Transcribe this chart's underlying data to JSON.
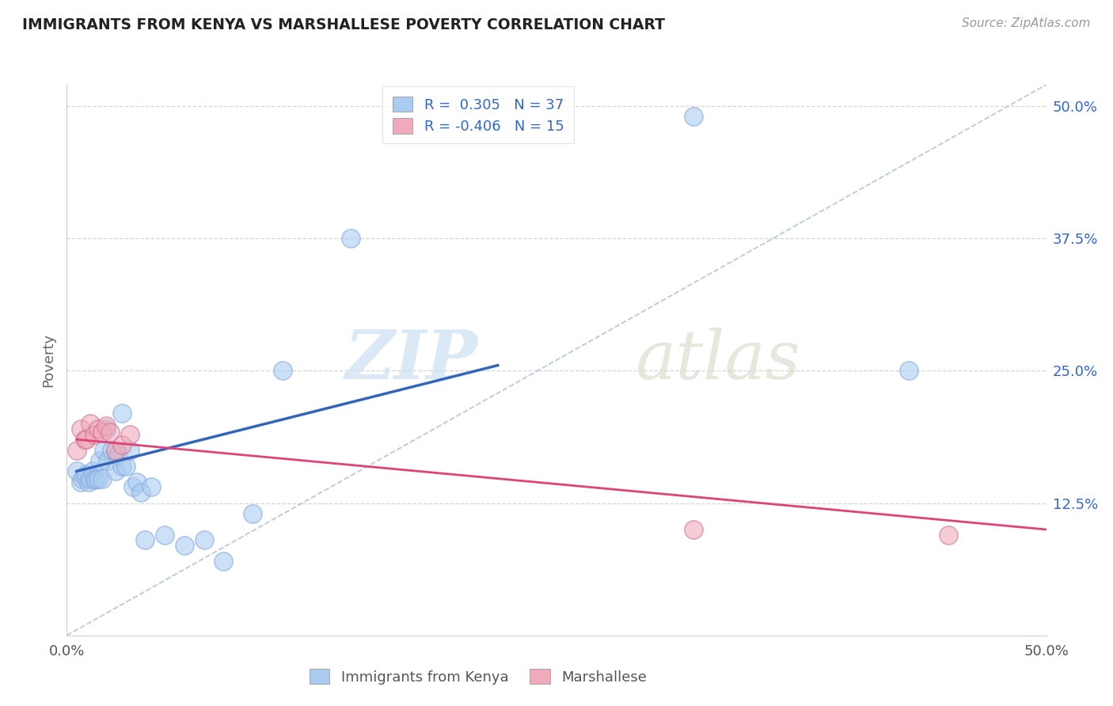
{
  "title": "IMMIGRANTS FROM KENYA VS MARSHALLESE POVERTY CORRELATION CHART",
  "source_text": "Source: ZipAtlas.com",
  "ylabel": "Poverty",
  "xlim": [
    0.0,
    0.5
  ],
  "ylim": [
    0.0,
    0.52
  ],
  "ytick_positions": [
    0.125,
    0.25,
    0.375,
    0.5
  ],
  "ytick_labels": [
    "12.5%",
    "25.0%",
    "37.5%",
    "50.0%"
  ],
  "kenya_R": 0.305,
  "kenya_N": 37,
  "marsh_R": -0.406,
  "marsh_N": 15,
  "kenya_color": "#aaccf0",
  "marsh_color": "#f0aabb",
  "kenya_line_color": "#3366bb",
  "marsh_line_color": "#dd4477",
  "trend_color": "#b0c4d8",
  "background_color": "#ffffff",
  "grid_color": "#cccccc",
  "legend_R_color": "#3366cc",
  "kenya_x": [
    0.02,
    0.028,
    0.005,
    0.007,
    0.008,
    0.009,
    0.01,
    0.011,
    0.012,
    0.013,
    0.014,
    0.015,
    0.016,
    0.017,
    0.018,
    0.019,
    0.021,
    0.023,
    0.025,
    0.026,
    0.028,
    0.03,
    0.032,
    0.034,
    0.036,
    0.038,
    0.04,
    0.043,
    0.05,
    0.06,
    0.07,
    0.08,
    0.095,
    0.11,
    0.145,
    0.32,
    0.43
  ],
  "kenya_y": [
    0.195,
    0.21,
    0.155,
    0.145,
    0.148,
    0.15,
    0.152,
    0.145,
    0.148,
    0.155,
    0.148,
    0.147,
    0.148,
    0.165,
    0.148,
    0.175,
    0.165,
    0.175,
    0.155,
    0.17,
    0.16,
    0.16,
    0.175,
    0.14,
    0.145,
    0.135,
    0.09,
    0.14,
    0.095,
    0.085,
    0.09,
    0.07,
    0.115,
    0.25,
    0.375,
    0.49,
    0.25
  ],
  "marsh_x": [
    0.005,
    0.007,
    0.009,
    0.01,
    0.012,
    0.014,
    0.016,
    0.018,
    0.02,
    0.022,
    0.025,
    0.028,
    0.032,
    0.32,
    0.45
  ],
  "marsh_y": [
    0.175,
    0.195,
    0.185,
    0.185,
    0.2,
    0.19,
    0.195,
    0.192,
    0.198,
    0.192,
    0.175,
    0.18,
    0.19,
    0.1,
    0.095
  ],
  "kenya_line_x": [
    0.005,
    0.22
  ],
  "kenya_line_y": [
    0.155,
    0.255
  ],
  "marsh_line_x": [
    0.005,
    0.5
  ],
  "marsh_line_y": [
    0.185,
    0.1
  ]
}
